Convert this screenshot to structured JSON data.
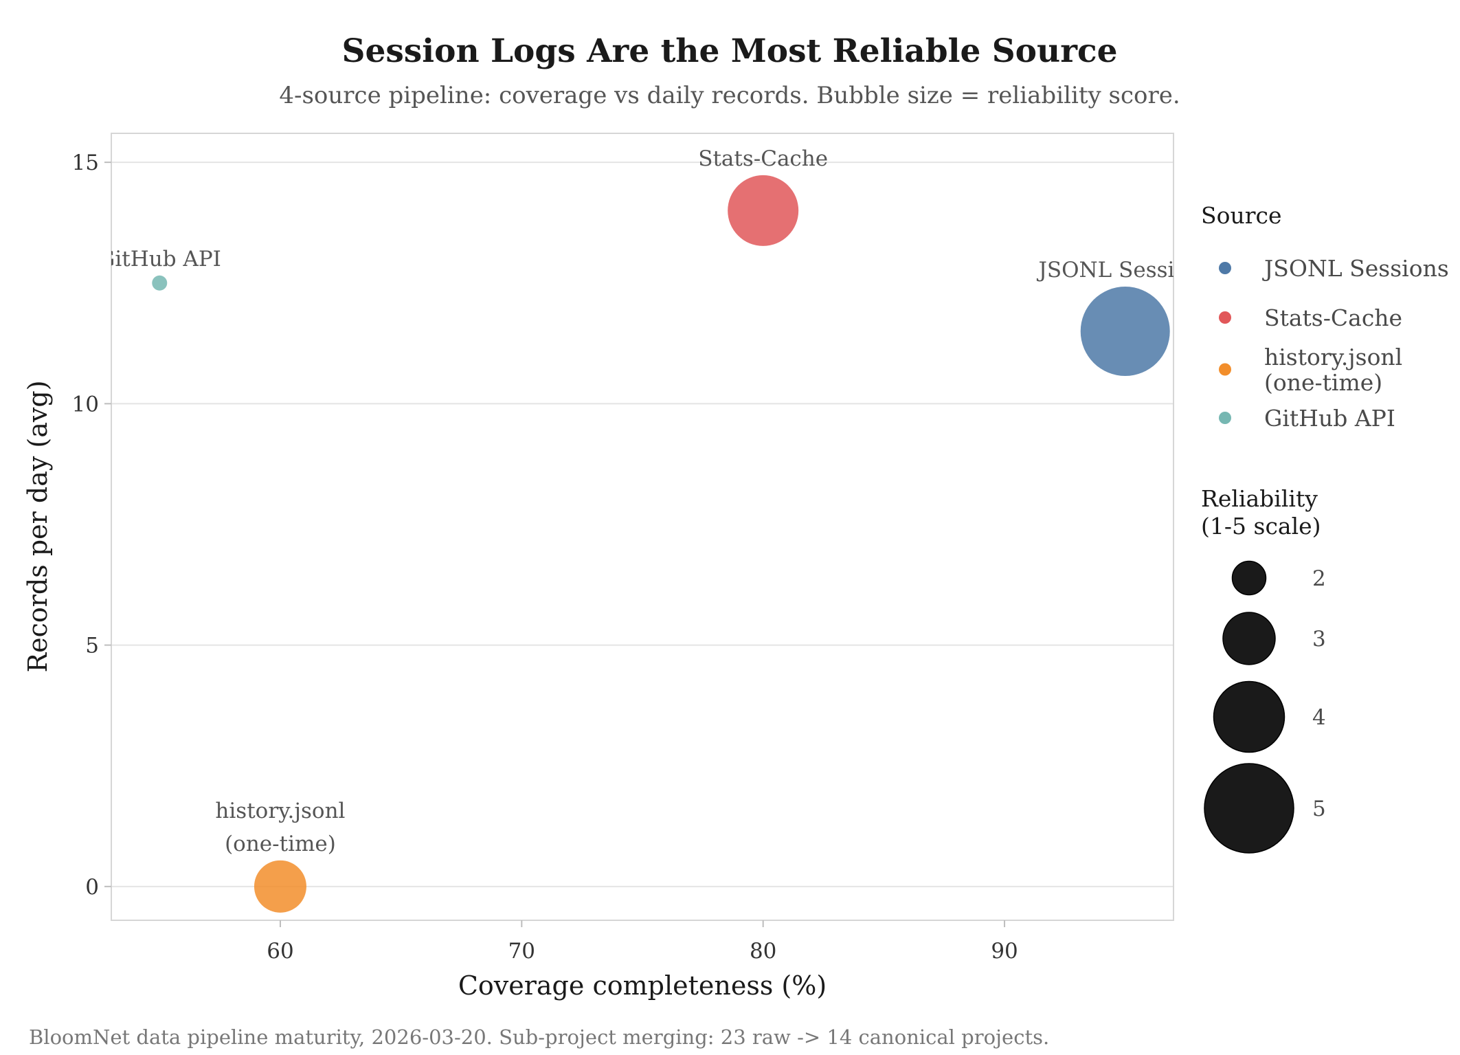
{
  "chart_data": {
    "type": "scatter",
    "title": "Session Logs Are the Most Reliable Source",
    "subtitle": "4-source pipeline: coverage vs daily records. Bubble size = reliability score.",
    "xlabel": "Coverage completeness (%)",
    "ylabel": "Records per day (avg)",
    "caption": "BloomNet data pipeline maturity, 2026-03-20. Sub-project merging: 23 raw -> 14 canonical projects.",
    "xlim": [
      53,
      97
    ],
    "ylim": [
      -0.7,
      15.6
    ],
    "xticks": [
      60,
      70,
      80,
      90
    ],
    "yticks": [
      0,
      5,
      10,
      15
    ],
    "grid": "horizontal",
    "legend_placement": "right",
    "points": [
      {
        "label": "JSONL Sessions",
        "x": 95,
        "y": 11.5,
        "reliability": 5,
        "color": "#4e79a7"
      },
      {
        "label": "Stats-Cache",
        "x": 80,
        "y": 14.0,
        "reliability": 4,
        "color": "#e15759"
      },
      {
        "label": "history.jsonl\n(one-time)",
        "x": 60,
        "y": 0,
        "reliability": 3,
        "color": "#f28e2b"
      },
      {
        "label": "GitHub API",
        "x": 55,
        "y": 12.5,
        "reliability": 1,
        "color": "#76b7b2"
      }
    ],
    "legend_color": {
      "title": "Source",
      "items": [
        {
          "label": "JSONL Sessions",
          "color": "#4e79a7"
        },
        {
          "label": "Stats-Cache",
          "color": "#e15759"
        },
        {
          "label": "history.jsonl\n(one-time)",
          "color": "#f28e2b"
        },
        {
          "label": "GitHub API",
          "color": "#76b7b2"
        }
      ]
    },
    "legend_size": {
      "title": "Reliability\n(1-5 scale)",
      "items": [
        2,
        3,
        4,
        5
      ]
    }
  }
}
